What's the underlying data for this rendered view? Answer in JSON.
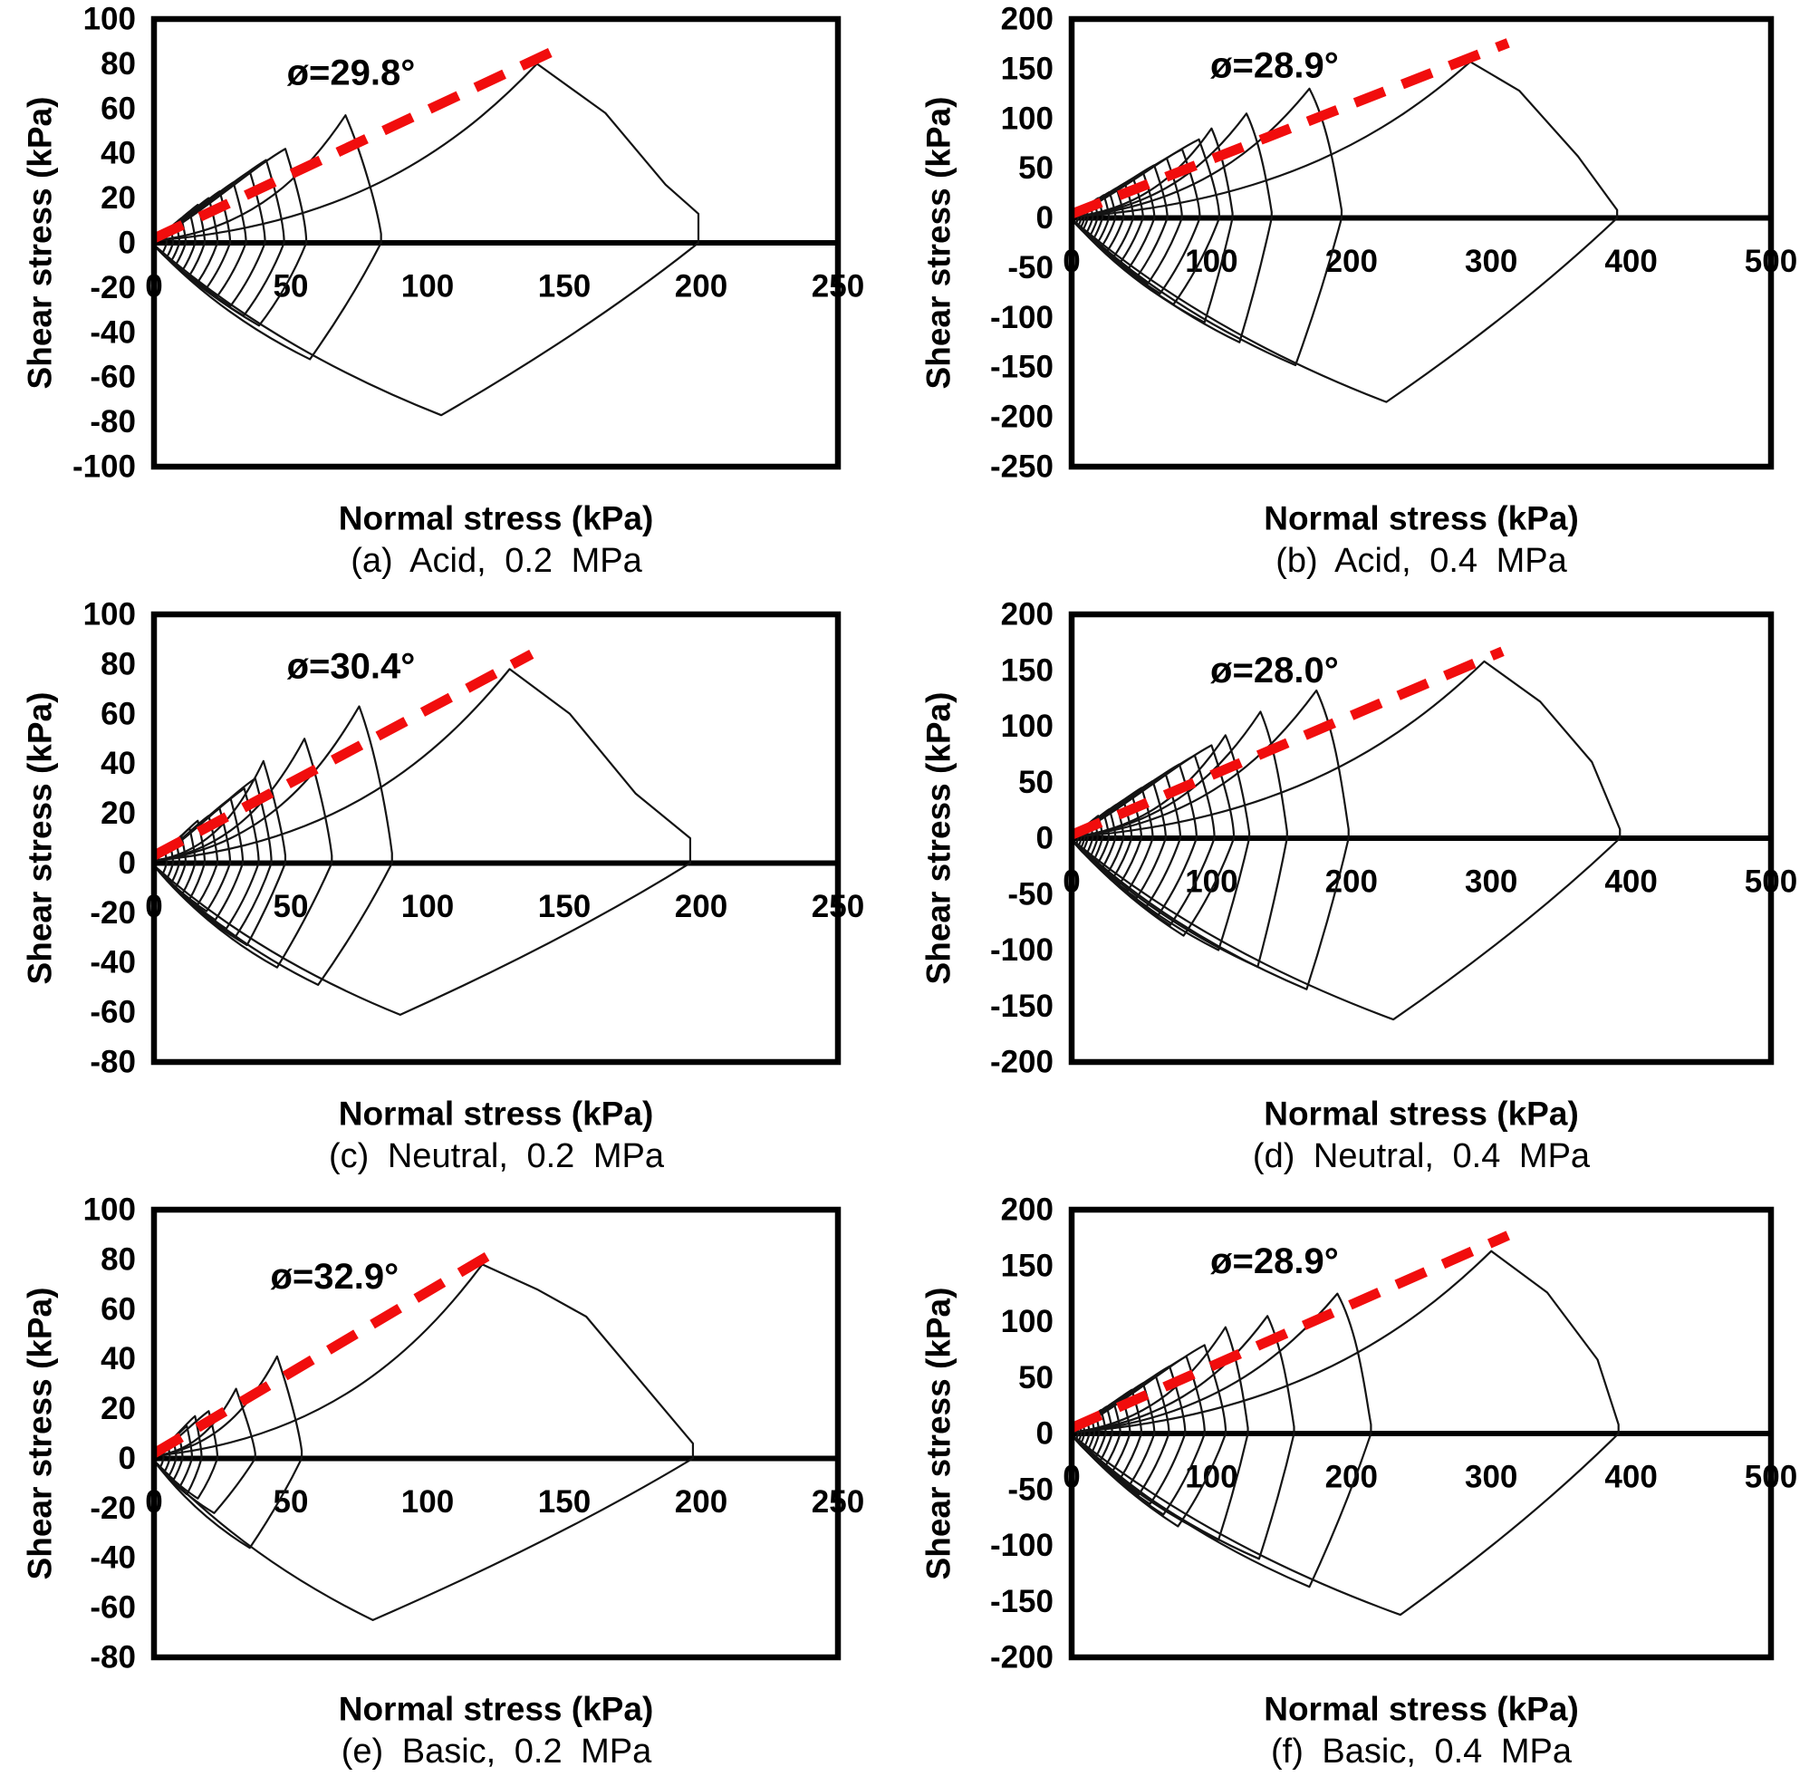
{
  "page": {
    "background": "#ffffff"
  },
  "colors": {
    "envelope_red": "#f10d0d",
    "curve_black": "#141414",
    "axis_black": "#000000"
  },
  "chart_data": [
    {
      "id": "a",
      "type": "line",
      "col": "left",
      "caption": "(a) Acid, 0.2 MPa",
      "xlabel": "Normal stress (kPa)",
      "ylabel": "Shear stress (kPa)",
      "xlim": [
        0,
        250
      ],
      "xticks": [
        0,
        50,
        100,
        150,
        200,
        250
      ],
      "ylim": [
        -100,
        100
      ],
      "yticks": [
        100,
        80,
        60,
        40,
        20,
        0,
        -20,
        -40,
        -60,
        -80,
        -100
      ],
      "phi_deg": 29.8,
      "phi_label": "ø=29.8°",
      "envelope": {
        "from": [
          0,
          2
        ],
        "to": [
          150,
          88
        ]
      },
      "annotation_xy": [
        72,
        76
      ],
      "cluster_neg": 0.88,
      "cluster_peaks": [
        [
          4,
          5
        ],
        [
          6,
          7
        ],
        [
          8,
          9
        ],
        [
          10,
          11
        ],
        [
          13,
          14
        ],
        [
          16,
          17
        ],
        [
          20,
          20
        ],
        [
          24,
          23
        ],
        [
          29,
          27
        ],
        [
          35,
          32
        ],
        [
          41,
          37
        ],
        [
          48,
          42
        ]
      ],
      "major_loops": [
        {
          "peak": [
            70,
            57
          ],
          "right": [
            83,
            4
          ],
          "bottom": [
            57,
            -52
          ]
        },
        {
          "peak": [
            140,
            80
          ],
          "knees": [
            [
              165,
              58
            ],
            [
              187,
              26
            ]
          ],
          "right": [
            199,
            13
          ],
          "bottom": [
            105,
            -77
          ]
        }
      ]
    },
    {
      "id": "b",
      "type": "line",
      "col": "right",
      "caption": "(b) Acid, 0.4 MPa",
      "xlabel": "Normal stress (kPa)",
      "ylabel": "Shear stress (kPa)",
      "xlim": [
        0,
        500
      ],
      "xticks": [
        0,
        100,
        200,
        300,
        400,
        500
      ],
      "ylim": [
        -250,
        200
      ],
      "yticks": [
        200,
        150,
        100,
        50,
        0,
        -50,
        -100,
        -150,
        -200,
        -250
      ],
      "phi_deg": 28.9,
      "phi_label": "ø=28.9°",
      "envelope": {
        "from": [
          0,
          4
        ],
        "to": [
          312,
          176
        ]
      },
      "annotation_xy": [
        145,
        153
      ],
      "cluster_neg": 1.1,
      "cluster_peaks": [
        [
          4,
          5
        ],
        [
          6,
          7
        ],
        [
          8,
          9
        ],
        [
          10,
          11
        ],
        [
          13,
          14
        ],
        [
          16,
          17
        ],
        [
          19,
          20
        ],
        [
          23,
          23
        ],
        [
          27,
          26
        ],
        [
          32,
          30
        ],
        [
          38,
          35
        ],
        [
          44,
          40
        ],
        [
          51,
          46
        ],
        [
          59,
          53
        ],
        [
          68,
          60
        ],
        [
          79,
          69
        ],
        [
          91,
          79
        ]
      ],
      "major_loops": [
        {
          "peak": [
            100,
            90
          ],
          "right": [
            115,
            5
          ],
          "bottom": [
            95,
            -105
          ]
        },
        {
          "peak": [
            125,
            105
          ],
          "right": [
            143,
            6
          ],
          "bottom": [
            120,
            -125
          ]
        },
        {
          "peak": [
            170,
            130
          ],
          "right": [
            193,
            8
          ],
          "bottom": [
            160,
            -148
          ]
        },
        {
          "peak": [
            285,
            157
          ],
          "knees": [
            [
              320,
              128
            ],
            [
              362,
              62
            ]
          ],
          "right": [
            390,
            8
          ],
          "bottom": [
            225,
            -185
          ]
        }
      ]
    },
    {
      "id": "c",
      "type": "line",
      "col": "left",
      "caption": "(c) Neutral, 0.2 MPa",
      "xlabel": "Normal stress (kPa)",
      "ylabel": "Shear stress (kPa)",
      "xlim": [
        0,
        250
      ],
      "xticks": [
        0,
        50,
        100,
        150,
        200,
        250
      ],
      "ylim": [
        -80,
        100
      ],
      "yticks": [
        100,
        80,
        60,
        40,
        20,
        0,
        -20,
        -40,
        -60,
        -80
      ],
      "phi_deg": 30.4,
      "phi_label": "ø=30.4°",
      "envelope": {
        "from": [
          0,
          3
        ],
        "to": [
          138,
          84
        ]
      },
      "annotation_xy": [
        72,
        79
      ],
      "cluster_neg": 0.88,
      "cluster_peaks": [
        [
          4,
          5
        ],
        [
          6,
          7
        ],
        [
          8,
          9
        ],
        [
          10,
          11
        ],
        [
          13,
          14
        ],
        [
          16,
          17
        ],
        [
          20,
          19
        ],
        [
          24,
          22
        ],
        [
          28,
          26
        ],
        [
          33,
          30
        ],
        [
          37,
          34
        ]
      ],
      "major_loops": [
        {
          "peak": [
            40,
            41
          ],
          "right": [
            48,
            3
          ],
          "bottom": [
            34,
            -33
          ]
        },
        {
          "peak": [
            55,
            50
          ],
          "right": [
            65,
            3
          ],
          "bottom": [
            45,
            -42
          ]
        },
        {
          "peak": [
            75,
            63
          ],
          "right": [
            87,
            4
          ],
          "bottom": [
            60,
            -49
          ]
        },
        {
          "peak": [
            130,
            78
          ],
          "knees": [
            [
              152,
              60
            ],
            [
              176,
              28
            ]
          ],
          "right": [
            196,
            10
          ],
          "bottom": [
            90,
            -61
          ]
        }
      ]
    },
    {
      "id": "d",
      "type": "line",
      "col": "right",
      "caption": "(d) Neutral, 0.4 MPa",
      "xlabel": "Normal stress (kPa)",
      "ylabel": "Shear stress (kPa)",
      "xlim": [
        0,
        500
      ],
      "xticks": [
        0,
        100,
        200,
        300,
        400,
        500
      ],
      "ylim": [
        -200,
        200
      ],
      "yticks": [
        200,
        150,
        100,
        50,
        0,
        -50,
        -100,
        -150,
        -200
      ],
      "phi_deg": 28.0,
      "phi_label": "ø=28.0°",
      "envelope": {
        "from": [
          0,
          3
        ],
        "to": [
          308,
          167
        ]
      },
      "annotation_xy": [
        145,
        150
      ],
      "cluster_neg": 1.05,
      "cluster_peaks": [
        [
          4,
          5
        ],
        [
          6,
          7
        ],
        [
          8,
          9
        ],
        [
          10,
          11
        ],
        [
          13,
          14
        ],
        [
          16,
          17
        ],
        [
          19,
          20
        ],
        [
          23,
          22
        ],
        [
          27,
          26
        ],
        [
          32,
          30
        ],
        [
          37,
          34
        ],
        [
          43,
          39
        ],
        [
          50,
          45
        ],
        [
          58,
          51
        ],
        [
          67,
          58
        ],
        [
          77,
          66
        ],
        [
          88,
          74
        ],
        [
          100,
          83
        ]
      ],
      "major_loops": [
        {
          "peak": [
            110,
            92
          ],
          "right": [
            127,
            5
          ],
          "bottom": [
            105,
            -100
          ]
        },
        {
          "peak": [
            135,
            113
          ],
          "right": [
            154,
            6
          ],
          "bottom": [
            133,
            -115
          ]
        },
        {
          "peak": [
            175,
            132
          ],
          "right": [
            198,
            8
          ],
          "bottom": [
            168,
            -135
          ]
        },
        {
          "peak": [
            295,
            158
          ],
          "knees": [
            [
              335,
              122
            ],
            [
              372,
              68
            ]
          ],
          "right": [
            392,
            8
          ],
          "bottom": [
            230,
            -162
          ]
        }
      ]
    },
    {
      "id": "e",
      "type": "line",
      "col": "left",
      "caption": "(e) Basic, 0.2 MPa",
      "xlabel": "Normal stress (kPa)",
      "ylabel": "Shear stress (kPa)",
      "xlim": [
        0,
        250
      ],
      "xticks": [
        0,
        50,
        100,
        150,
        200,
        250
      ],
      "ylim": [
        -80,
        100
      ],
      "yticks": [
        100,
        80,
        60,
        40,
        20,
        0,
        -20,
        -40,
        -60,
        -80
      ],
      "phi_deg": 32.9,
      "phi_label": "ø=32.9°",
      "envelope": {
        "from": [
          0,
          2
        ],
        "to": [
          123,
          82
        ]
      },
      "annotation_xy": [
        66,
        73
      ],
      "cluster_neg": 0.85,
      "cluster_peaks": [
        [
          3,
          4
        ],
        [
          5,
          6
        ],
        [
          7,
          8
        ],
        [
          9,
          10
        ],
        [
          12,
          13
        ],
        [
          15,
          17
        ],
        [
          20,
          19
        ]
      ],
      "major_loops": [
        {
          "peak": [
            30,
            28
          ],
          "right": [
            37,
            2
          ],
          "bottom": [
            22,
            -22
          ]
        },
        {
          "peak": [
            45,
            41
          ],
          "right": [
            54,
            3
          ],
          "bottom": [
            35,
            -36
          ]
        },
        {
          "peak": [
            120,
            78
          ],
          "knees": [
            [
              140,
              68
            ],
            [
              158,
              57
            ]
          ],
          "right": [
            197,
            6
          ],
          "bottom": [
            80,
            -65
          ]
        }
      ]
    },
    {
      "id": "f",
      "type": "line",
      "col": "right",
      "caption": "(f) Basic, 0.4 MPa",
      "xlabel": "Normal stress (kPa)",
      "ylabel": "Shear stress (kPa)",
      "xlim": [
        0,
        500
      ],
      "xticks": [
        0,
        100,
        200,
        300,
        400,
        500
      ],
      "ylim": [
        -200,
        200
      ],
      "yticks": [
        200,
        150,
        100,
        50,
        0,
        -50,
        -100,
        -150,
        -200
      ],
      "phi_deg": 28.9,
      "phi_label": "ø=28.9°",
      "envelope": {
        "from": [
          0,
          5
        ],
        "to": [
          312,
          177
        ]
      },
      "annotation_xy": [
        145,
        154
      ],
      "cluster_neg": 1.05,
      "cluster_peaks": [
        [
          4,
          5
        ],
        [
          6,
          7
        ],
        [
          8,
          9
        ],
        [
          11,
          12
        ],
        [
          14,
          15
        ],
        [
          17,
          18
        ],
        [
          21,
          21
        ],
        [
          25,
          24
        ],
        [
          30,
          28
        ],
        [
          36,
          33
        ],
        [
          43,
          39
        ],
        [
          51,
          45
        ],
        [
          60,
          52
        ],
        [
          70,
          60
        ],
        [
          82,
          69
        ],
        [
          95,
          79
        ]
      ],
      "major_loops": [
        {
          "peak": [
            110,
            95
          ],
          "right": [
            126,
            5
          ],
          "bottom": [
            105,
            -95
          ]
        },
        {
          "peak": [
            140,
            105
          ],
          "right": [
            159,
            6
          ],
          "bottom": [
            134,
            -112
          ]
        },
        {
          "peak": [
            190,
            125
          ],
          "right": [
            214,
            8
          ],
          "bottom": [
            170,
            -137
          ]
        },
        {
          "peak": [
            300,
            163
          ],
          "knees": [
            [
              340,
              126
            ],
            [
              376,
              66
            ]
          ],
          "right": [
            391,
            8
          ],
          "bottom": [
            235,
            -162
          ]
        }
      ]
    }
  ]
}
